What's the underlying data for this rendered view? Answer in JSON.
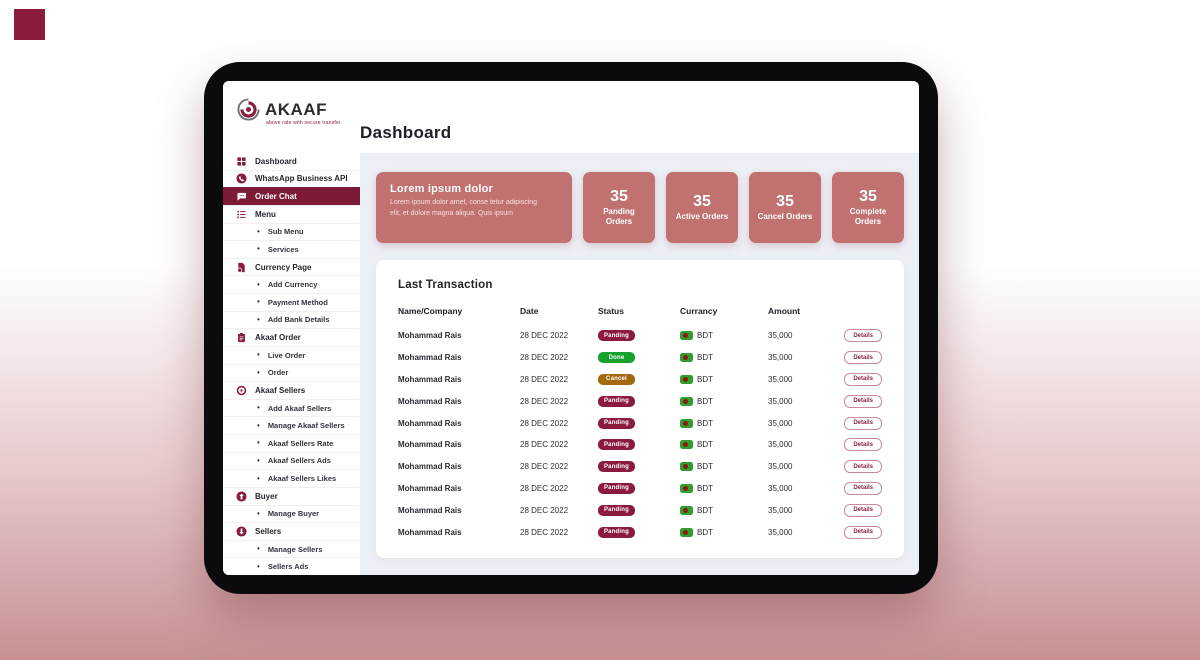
{
  "brand": {
    "name": "AKAAF",
    "tagline": "above rate with secure transfer"
  },
  "header": {
    "title": "Dashboard"
  },
  "sidebar": {
    "items": [
      {
        "label": "Dashboard",
        "icon": "grid-icon",
        "level": 1,
        "active": false
      },
      {
        "label": "WhatsApp Business API",
        "icon": "phone-circle-icon",
        "level": 1,
        "active": false
      },
      {
        "label": "Order Chat",
        "icon": "chat-bubble-icon",
        "level": 1,
        "active": true
      },
      {
        "label": "Menu",
        "icon": "list-icon",
        "level": 1,
        "active": false
      },
      {
        "label": "Sub Menu",
        "level": 2
      },
      {
        "label": "Services",
        "level": 2
      },
      {
        "label": "Currency Page",
        "icon": "currency-doc-icon",
        "level": 1,
        "active": false
      },
      {
        "label": "Add Currency",
        "level": 2
      },
      {
        "label": "Payment Method",
        "level": 2
      },
      {
        "label": "Add Bank Details",
        "level": 2
      },
      {
        "label": "Akaaf Order",
        "icon": "clipboard-icon",
        "level": 1,
        "active": false
      },
      {
        "label": "Live Order",
        "level": 2
      },
      {
        "label": "Order",
        "level": 2
      },
      {
        "label": "Akaaf Sellers",
        "icon": "target-icon",
        "level": 1,
        "active": false
      },
      {
        "label": "Add Akaaf Sellers",
        "level": 2
      },
      {
        "label": "Manage Akaaf Sellers",
        "level": 2
      },
      {
        "label": "Akaaf Sellers Rate",
        "level": 2
      },
      {
        "label": "Akaaf Sellers Ads",
        "level": 2
      },
      {
        "label": "Akaaf Sellers Likes",
        "level": 2
      },
      {
        "label": "Buyer",
        "icon": "arrow-up-circle-icon",
        "level": 1,
        "active": false
      },
      {
        "label": "Manage Buyer",
        "level": 2
      },
      {
        "label": "Sellers",
        "icon": "arrow-down-circle-icon",
        "level": 1,
        "active": false
      },
      {
        "label": "Manage Sellers",
        "level": 2
      },
      {
        "label": "Sellers Ads",
        "level": 2
      }
    ]
  },
  "overview": {
    "hero": {
      "title": "Lorem ipsum dolor",
      "body": "Lorem ipsum dolor amet, conse tetur adipiscing elit, et dolore magna aliqua. Quis ipsum"
    },
    "stats": [
      {
        "value": "35",
        "label": "Panding Orders"
      },
      {
        "value": "35",
        "label": "Active Orders"
      },
      {
        "value": "35",
        "label": "Cancel Orders"
      },
      {
        "value": "35",
        "label": "Complete Orders"
      }
    ]
  },
  "transactions": {
    "title": "Last Transaction",
    "columns": [
      "Name/Company",
      "Date",
      "Status",
      "Currancy",
      "Amount"
    ],
    "details_label": "Details",
    "status_colors": {
      "Panding": "#8a1b3d",
      "Done": "#17a22e",
      "Cancel": "#a2690f"
    },
    "rows": [
      {
        "name": "Mohammad Rais",
        "date": "28 DEC 2022",
        "status": "Panding",
        "currency": "BDT",
        "amount": "35,000"
      },
      {
        "name": "Mohammad Rais",
        "date": "28 DEC 2022",
        "status": "Done",
        "currency": "BDT",
        "amount": "35,000"
      },
      {
        "name": "Mohammad Rais",
        "date": "28 DEC 2022",
        "status": "Cancel",
        "currency": "BDT",
        "amount": "35,000"
      },
      {
        "name": "Mohammad Rais",
        "date": "28 DEC 2022",
        "status": "Panding",
        "currency": "BDT",
        "amount": "35,000"
      },
      {
        "name": "Mohammad Rais",
        "date": "28 DEC 2022",
        "status": "Panding",
        "currency": "BDT",
        "amount": "35,000"
      },
      {
        "name": "Mohammad Rais",
        "date": "28 DEC 2022",
        "status": "Panding",
        "currency": "BDT",
        "amount": "35,000"
      },
      {
        "name": "Mohammad Rais",
        "date": "28 DEC 2022",
        "status": "Panding",
        "currency": "BDT",
        "amount": "35,000"
      },
      {
        "name": "Mohammad Rais",
        "date": "28 DEC 2022",
        "status": "Panding",
        "currency": "BDT",
        "amount": "35,000"
      },
      {
        "name": "Mohammad Rais",
        "date": "28 DEC 2022",
        "status": "Panding",
        "currency": "BDT",
        "amount": "35,000"
      },
      {
        "name": "Mohammad Rais",
        "date": "28 DEC 2022",
        "status": "Panding",
        "currency": "BDT",
        "amount": "35,000"
      }
    ]
  },
  "colors": {
    "accent": "#8a1b3d",
    "active_item": "#7d1a36",
    "card_rose": "#c07170",
    "main_bg": "#edeff6",
    "decor_square": "#8b1c3b",
    "flag_green": "#2f9e2e",
    "flag_dot": "#8d1a10"
  }
}
